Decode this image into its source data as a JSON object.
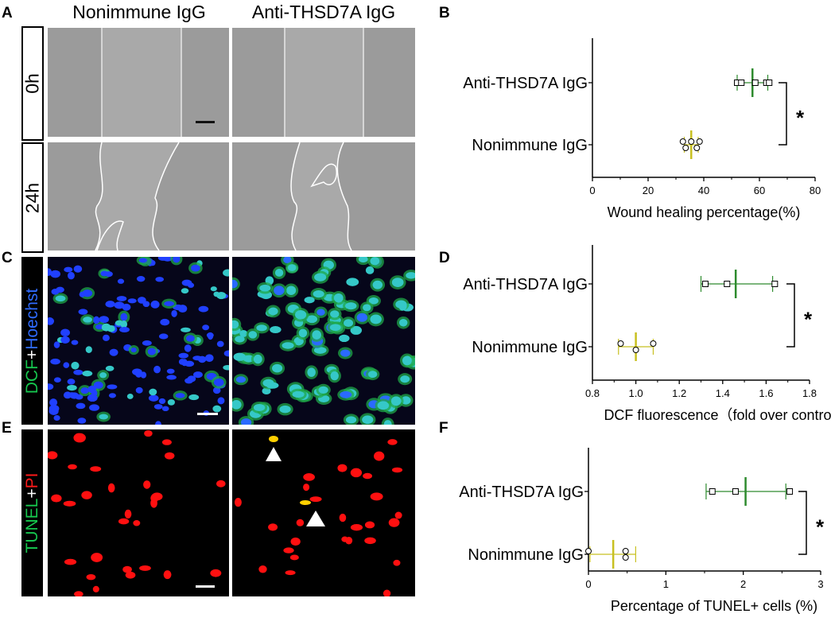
{
  "panels": {
    "A": "A",
    "B": "B",
    "C": "C",
    "D": "D",
    "E": "E",
    "F": "F"
  },
  "columns": {
    "left": "Nonimmune IgG",
    "right": "Anti-THSD7A IgG"
  },
  "row_labels": {
    "t0": "0h",
    "t24": "24h"
  },
  "stain_c": {
    "part1": "DCF",
    "plus": "+",
    "part2": "Hoechst"
  },
  "stain_e": {
    "part1": "TUNEL",
    "plus": "+",
    "part2": "PI"
  },
  "colors": {
    "anti": "#2e8b2e",
    "nonimmune": "#c8c020",
    "dcf_green": "#16c74e",
    "hoechst_blue": "#2f6bff",
    "pi_red": "#ff1a1a",
    "star": "*"
  },
  "chart_data": [
    {
      "id": "B",
      "type": "scatter",
      "categories": [
        "Anti-THSD7A IgG",
        "Nonimmune IgG"
      ],
      "xlabel": "Wound healing percentage(%)",
      "xlim": [
        0,
        80
      ],
      "xticks": [
        "0",
        "20",
        "40",
        "60",
        "80"
      ],
      "series": [
        {
          "points": [
            52,
            53.5,
            58.5,
            62.5,
            63.5
          ],
          "mean": 57.5,
          "err": [
            52,
            63
          ],
          "marker": "square",
          "color": "#2e8b2e"
        },
        {
          "points": [
            32.5,
            33.5,
            35.5,
            37.5,
            38.5
          ],
          "mean": 35.5,
          "err": [
            33,
            38
          ],
          "marker": "circle",
          "color": "#c8c020"
        }
      ],
      "significance": "*"
    },
    {
      "id": "D",
      "type": "scatter",
      "categories": [
        "Anti-THSD7A IgG",
        "Nonimmune IgG"
      ],
      "xlabel": "DCF fluorescence（fold over control）",
      "xlim": [
        0.8,
        1.8
      ],
      "xticks": [
        "0.8",
        "1.0",
        "1.2",
        "1.4",
        "1.6",
        "1.8"
      ],
      "series": [
        {
          "points": [
            1.32,
            1.42,
            1.64
          ],
          "mean": 1.46,
          "err": [
            1.3,
            1.63
          ],
          "marker": "square",
          "color": "#2e8b2e"
        },
        {
          "points": [
            0.93,
            1.0,
            1.08
          ],
          "mean": 1.0,
          "err": [
            0.92,
            1.08
          ],
          "marker": "circle",
          "color": "#c8c020"
        }
      ],
      "significance": "*"
    },
    {
      "id": "F",
      "type": "scatter",
      "categories": [
        "Anti-THSD7A IgG",
        "Nonimmune IgG"
      ],
      "xlabel": "Percentage of TUNEL+ cells (%)",
      "xlim": [
        0,
        3
      ],
      "xticks": [
        "0",
        "1",
        "2",
        "3"
      ],
      "series": [
        {
          "points": [
            1.6,
            1.9,
            2.6
          ],
          "mean": 2.03,
          "err": [
            1.52,
            2.55
          ],
          "marker": "square",
          "color": "#2e8b2e"
        },
        {
          "points": [
            0.0,
            0.48,
            0.48
          ],
          "mean": 0.32,
          "err": [
            0.02,
            0.61
          ],
          "marker": "circle",
          "color": "#c8c020"
        }
      ],
      "significance": "*"
    }
  ]
}
